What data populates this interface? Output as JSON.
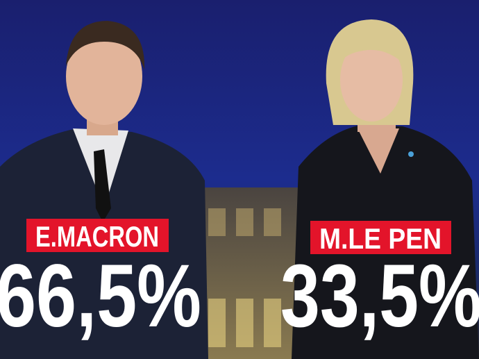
{
  "candidates": [
    {
      "name": "E.MACRON",
      "result": "66,5%"
    },
    {
      "name": "M.LE PEN",
      "result": "33,5%"
    }
  ]
}
